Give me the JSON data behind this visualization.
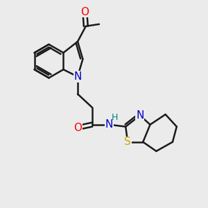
{
  "bg_color": "#ebebeb",
  "bond_color": "#1a1a1a",
  "bond_width": 1.8,
  "atom_colors": {
    "O": "#ff0000",
    "N": "#0000cc",
    "S": "#ccaa00",
    "H": "#008080",
    "C": "#1a1a1a"
  },
  "font_size_atom": 11,
  "font_size_small": 9
}
